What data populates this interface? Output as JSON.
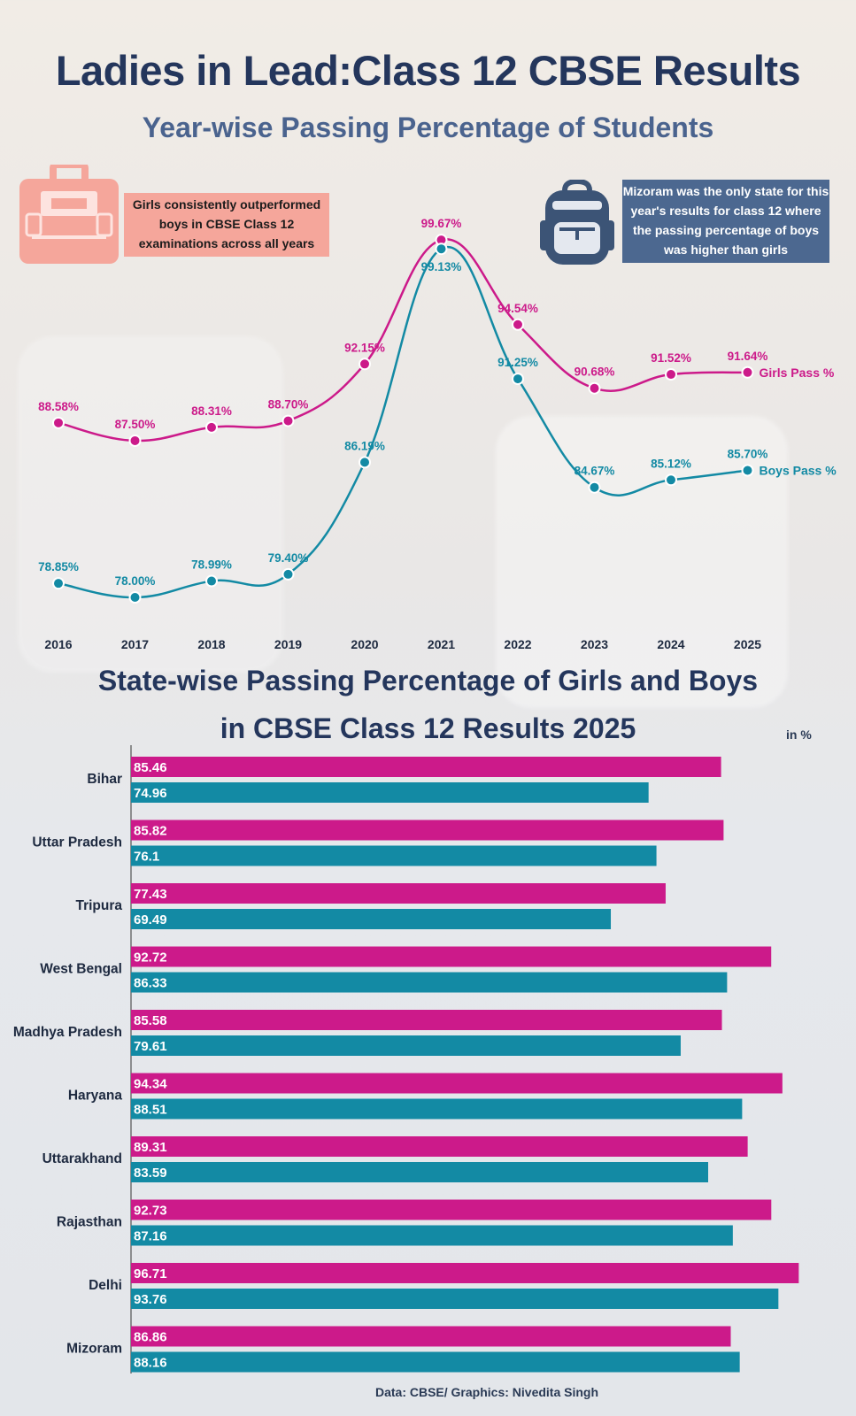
{
  "title": "Ladies in Lead:Class 12 CBSE Results",
  "subtitle": "Year-wise Passing Percentage of Students",
  "notes": {
    "left": "Girls consistently outperformed boys in CBSE Class 12 examinations across all years",
    "right": "Mizoram was the only state for this year's results for class 12 where the passing percentage of boys was higher than girls"
  },
  "icons": {
    "left": "briefcase-icon",
    "right": "backpack-icon"
  },
  "colors": {
    "girls": "#cc1a8a",
    "boys": "#138aa4",
    "title": "#24365c",
    "subtitle": "#4a638e",
    "note_left_bg": "#f5a69b",
    "note_right_bg": "#4c6890"
  },
  "bar_title_line1": "State-wise Passing Percentage of Girls and Boys",
  "bar_title_line2": "in CBSE Class 12 Results 2025",
  "unit": "in %",
  "source": "Data: CBSE/ Graphics: Nivedita Singh",
  "chart_data": [
    {
      "type": "line",
      "title": "Year-wise Passing Percentage of Students",
      "x": [
        "2016",
        "2017",
        "2018",
        "2019",
        "2020",
        "2021",
        "2022",
        "2023",
        "2024",
        "2025"
      ],
      "series": [
        {
          "name": "Girls Pass %",
          "values": [
            88.58,
            87.5,
            88.31,
            88.7,
            92.15,
            99.67,
            94.54,
            90.68,
            91.52,
            91.64
          ],
          "labels": [
            "88.58%",
            "87.50%",
            "88.31%",
            "88.70%",
            "92.15%",
            "99.67%",
            "94.54%",
            "90.68%",
            "91.52%",
            "91.64%"
          ]
        },
        {
          "name": "Boys Pass %",
          "values": [
            78.85,
            78.0,
            78.99,
            79.4,
            86.19,
            99.13,
            91.25,
            84.67,
            85.12,
            85.7
          ],
          "labels": [
            "78.85%",
            "78.00%",
            "78.99%",
            "79.40%",
            "86.19%",
            "99.13%",
            "91.25%",
            "84.67%",
            "85.12%",
            "85.70%"
          ]
        }
      ],
      "ylim": [
        78,
        100
      ],
      "grid": false
    },
    {
      "type": "bar",
      "orientation": "horizontal",
      "title": "State-wise Passing Percentage of Girls and Boys in CBSE Class 12 Results 2025",
      "categories": [
        "Bihar",
        "Uttar Pradesh",
        "Tripura",
        "West Bengal",
        "Madhya Pradesh",
        "Haryana",
        "Uttarakhand",
        "Rajasthan",
        "Delhi",
        "Mizoram"
      ],
      "series": [
        {
          "values": [
            85.46,
            85.82,
            77.43,
            92.72,
            85.58,
            94.34,
            89.31,
            92.73,
            96.71,
            86.86
          ],
          "labels": [
            "85.46",
            "85.82",
            "77.43",
            "92.72",
            "85.58",
            "94.34",
            "89.31",
            "92.73",
            "96.71",
            "86.86"
          ]
        },
        {
          "values": [
            74.96,
            76.1,
            69.49,
            86.33,
            79.61,
            88.51,
            83.59,
            87.16,
            93.76,
            88.16
          ],
          "labels": [
            "74.96",
            "76.1",
            "69.49",
            "86.33",
            "79.61",
            "88.51",
            "83.59",
            "87.16",
            "93.76",
            "88.16"
          ]
        }
      ],
      "xlim": [
        0,
        100
      ],
      "unit": "in %"
    }
  ]
}
